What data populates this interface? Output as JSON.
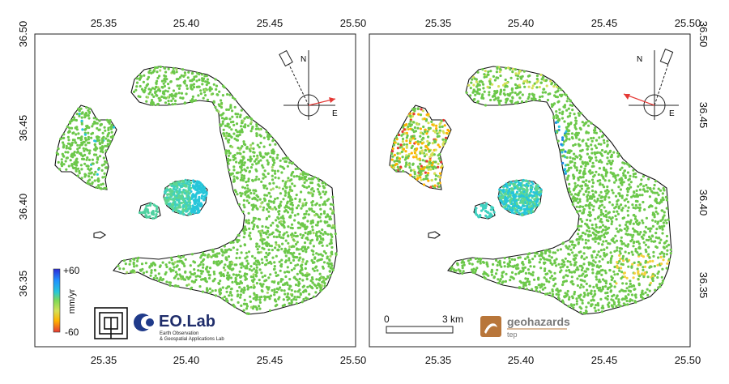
{
  "panels": [
    {
      "id": "ascending",
      "x_ticks_top": [
        "25.35",
        "25.40",
        "25.45",
        "25.50"
      ],
      "x_ticks_bottom": [
        "25.35",
        "25.40",
        "25.45",
        "25.50"
      ],
      "y_ticks_left": [
        "36.50",
        "36.45",
        "36.40",
        "36.35"
      ],
      "compass": {
        "north_label": "N",
        "east_label": "E"
      }
    },
    {
      "id": "descending",
      "x_ticks_top": [
        "25.35",
        "25.40",
        "25.45",
        "25.50"
      ],
      "x_ticks_bottom": [
        "25.35",
        "25.40",
        "25.45",
        "25.50"
      ],
      "y_ticks_right": [
        "36.50",
        "36.45",
        "36.40",
        "36.35"
      ],
      "compass": {
        "north_label": "N",
        "east_label": "E"
      }
    }
  ],
  "colorbar": {
    "max_label": "+60",
    "min_label": "-60",
    "unit_label": "mm/yr",
    "colors": [
      "#2b2bd6",
      "#1e90ff",
      "#26c6da",
      "#7ed957",
      "#d4e157",
      "#ffb300",
      "#e53935"
    ]
  },
  "logos": {
    "eolab_title": "EO.Lab",
    "eolab_line1": "Earth Observation",
    "eolab_line2": "& Geospatial Applications Lab",
    "geohazards_title": "geohazards",
    "geohazards_sub": "tep"
  },
  "scalebar": {
    "start_label": "0",
    "end_label": "3 km"
  },
  "colors": {
    "point_green": "#6cc84a",
    "coast": "#111111",
    "axes": "#222222"
  }
}
